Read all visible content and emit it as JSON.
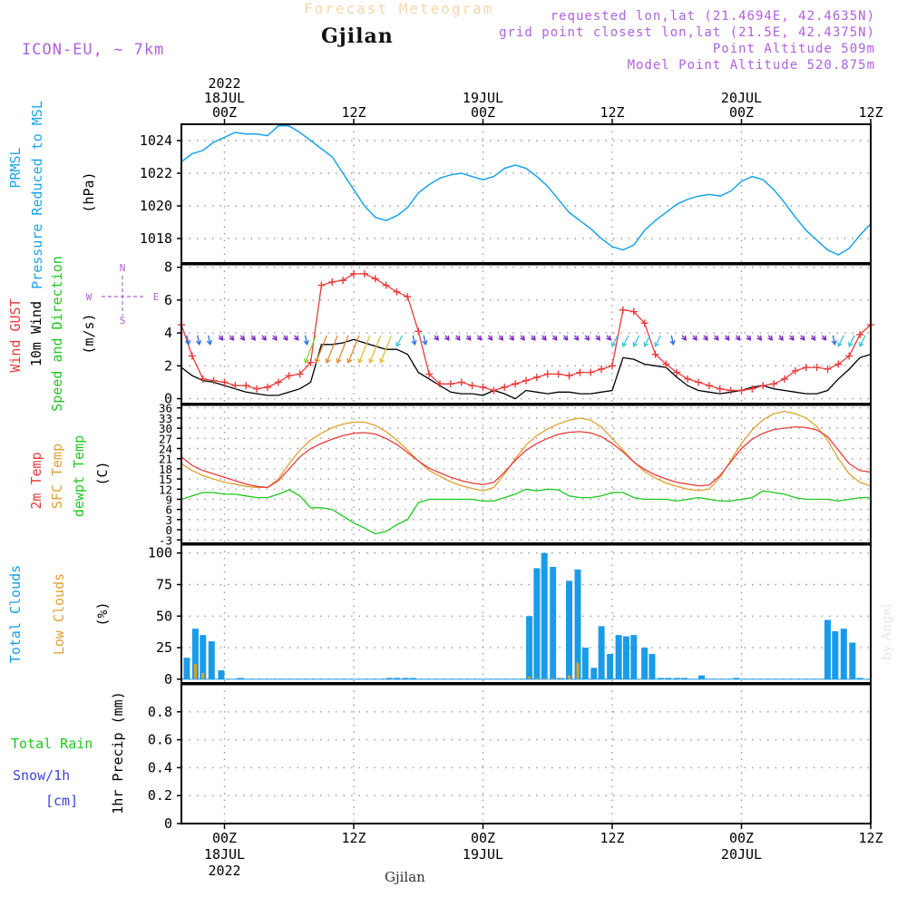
{
  "header": {
    "super_title": "Forecast Meteogram",
    "location": "Gjilan",
    "model": "ICON-EU, ~ 7km",
    "requested": "requested lon,lat (21.4694E, 42.4635N)",
    "grid_point": "grid point closest lon,lat (21.5E, 42.4375N)",
    "point_altitude": "Point Altitude 509m",
    "model_altitude": "Model Point Altitude 520.875m",
    "credit": "by Angel",
    "footer_location": "Gjilan"
  },
  "time_axis": {
    "top_labels": [
      "2022\n18JUL\n00Z",
      "12Z",
      "19JUL\n00Z",
      "12Z",
      "20JUL\n00Z",
      "12Z"
    ],
    "bottom_labels": [
      "00Z\n18JUL\n2022",
      "12Z",
      "00Z\n19JUL",
      "12Z",
      "00Z\n20JUL",
      "12Z"
    ]
  },
  "colors": {
    "pressure": "#1aa3e8",
    "gust": "#e83c3c",
    "wind": "#000000",
    "direction": "#1ec81e",
    "temp2m": "#e83c3c",
    "sfc": "#e0a030",
    "dewpt": "#1ec81e",
    "total_clouds": "#1a9be8",
    "low_clouds": "#e0a030",
    "rain": "#1ec81e",
    "snow": "#4040e0",
    "arrow_violet": "#7a22c8",
    "label_violet": "#b060e0"
  },
  "chart_data": [
    {
      "type": "line",
      "panel": "pressure",
      "ylabel_lines": [
        "PRMSL",
        "Pressure Reduced to MSL"
      ],
      "unit": "(hPa)",
      "ylim": [
        1016.5,
        1025
      ],
      "yticks": [
        1018,
        1020,
        1022,
        1024
      ],
      "x_unit": "hours from 18JUL 00Z",
      "xlim": [
        -4,
        60
      ],
      "series": [
        {
          "x": [
            -4,
            -3,
            -2,
            -1,
            0,
            1,
            2,
            3,
            4,
            5,
            6,
            7,
            8,
            9,
            10,
            11,
            12,
            13,
            14,
            15,
            16,
            17,
            18,
            19,
            20,
            21,
            22,
            23,
            24,
            25,
            26,
            27,
            28,
            29,
            30,
            31,
            32,
            33,
            34,
            35,
            36,
            37,
            38,
            39,
            40,
            41,
            42,
            43,
            44,
            45,
            46,
            47,
            48,
            49,
            50,
            51,
            52,
            53,
            54,
            55,
            56,
            57,
            58,
            59,
            60
          ],
          "y": [
            1022.7,
            1023.2,
            1023.4,
            1023.9,
            1024.2,
            1024.5,
            1024.4,
            1024.4,
            1024.3,
            1024.9,
            1024.9,
            1024.5,
            1024.0,
            1023.5,
            1023.0,
            1022.0,
            1021.0,
            1020.0,
            1019.3,
            1019.1,
            1019.4,
            1019.9,
            1020.8,
            1021.3,
            1021.7,
            1021.9,
            1022.0,
            1021.8,
            1021.6,
            1021.8,
            1022.3,
            1022.5,
            1022.3,
            1021.8,
            1021.2,
            1020.4,
            1019.6,
            1019.1,
            1018.6,
            1018.0,
            1017.5,
            1017.3,
            1017.6,
            1018.5,
            1019.1,
            1019.6,
            1020.1,
            1020.4,
            1020.6,
            1020.7,
            1020.6,
            1020.9,
            1021.5,
            1021.8,
            1021.6,
            1021.0,
            1020.2,
            1019.3,
            1018.5,
            1017.9,
            1017.3,
            1017.0,
            1017.4,
            1018.2,
            1018.9
          ]
        }
      ]
    },
    {
      "type": "line",
      "panel": "wind",
      "ylabel_lines": [
        "Wind GUST",
        "10m Wind",
        "Speed and Direction"
      ],
      "unit": "(m/s)",
      "compass": {
        "n": "N",
        "s": "S",
        "w": "W",
        "e": "E"
      },
      "ylim": [
        -0.3,
        8.2
      ],
      "yticks": [
        0,
        2,
        4,
        6,
        8
      ],
      "x_unit": "hours from 18JUL 00Z",
      "xlim": [
        -4,
        60
      ],
      "series": [
        {
          "name": "Wind GUST",
          "x": [
            -4,
            -3,
            -2,
            -1,
            0,
            1,
            2,
            3,
            4,
            5,
            6,
            7,
            8,
            9,
            10,
            11,
            12,
            13,
            14,
            15,
            16,
            17,
            18,
            19,
            20,
            21,
            22,
            23,
            24,
            25,
            26,
            27,
            28,
            29,
            30,
            31,
            32,
            33,
            34,
            35,
            36,
            37,
            38,
            39,
            40,
            41,
            42,
            43,
            44,
            45,
            46,
            47,
            48,
            49,
            50,
            51,
            52,
            53,
            54,
            55,
            56,
            57,
            58,
            59,
            60
          ],
          "y": [
            4.5,
            2.6,
            1.2,
            1.1,
            1.0,
            0.8,
            0.8,
            0.6,
            0.7,
            1.0,
            1.4,
            1.5,
            2.2,
            6.9,
            7.1,
            7.2,
            7.6,
            7.6,
            7.3,
            6.9,
            6.5,
            6.2,
            4.1,
            1.5,
            0.9,
            0.9,
            1.0,
            0.8,
            0.7,
            0.5,
            0.7,
            0.9,
            1.1,
            1.3,
            1.5,
            1.5,
            1.4,
            1.6,
            1.6,
            1.8,
            2.0,
            5.4,
            5.3,
            4.6,
            2.7,
            2.1,
            1.6,
            1.2,
            1.0,
            0.8,
            0.6,
            0.5,
            0.5,
            0.6,
            0.8,
            0.9,
            1.2,
            1.7,
            1.9,
            1.9,
            1.8,
            2.1,
            2.6,
            3.9,
            4.5
          ]
        },
        {
          "name": "10m Wind",
          "x": [
            -4,
            -3,
            -2,
            -1,
            0,
            1,
            2,
            3,
            4,
            5,
            6,
            7,
            8,
            9,
            10,
            11,
            12,
            13,
            14,
            15,
            16,
            17,
            18,
            19,
            20,
            21,
            22,
            23,
            24,
            25,
            26,
            27,
            28,
            29,
            30,
            31,
            32,
            33,
            34,
            35,
            36,
            37,
            38,
            39,
            40,
            41,
            42,
            43,
            44,
            45,
            46,
            47,
            48,
            49,
            50,
            51,
            52,
            53,
            54,
            55,
            56,
            57,
            58,
            59,
            60
          ],
          "y": [
            1.9,
            1.4,
            1.1,
            1.0,
            0.8,
            0.6,
            0.4,
            0.3,
            0.2,
            0.2,
            0.4,
            0.6,
            1.0,
            3.3,
            3.3,
            3.4,
            3.6,
            3.4,
            3.2,
            3.0,
            3.0,
            2.7,
            1.6,
            1.2,
            0.8,
            0.4,
            0.3,
            0.3,
            0.2,
            0.5,
            0.3,
            0.0,
            0.5,
            0.4,
            0.3,
            0.4,
            0.4,
            0.3,
            0.3,
            0.4,
            0.5,
            2.5,
            2.4,
            2.1,
            2.0,
            1.9,
            1.3,
            0.8,
            0.5,
            0.4,
            0.3,
            0.4,
            0.5,
            0.7,
            0.8,
            0.6,
            0.5,
            0.4,
            0.3,
            0.3,
            0.5,
            1.2,
            1.8,
            2.5,
            2.7
          ]
        }
      ]
    },
    {
      "type": "line",
      "panel": "temperature",
      "ylabel_lines": [
        "2m Temp",
        "SFC Temp",
        "dewpt Temp"
      ],
      "unit": "(C)",
      "ylim": [
        -4,
        37
      ],
      "yticks": [
        -3,
        0,
        3,
        6,
        9,
        12,
        15,
        18,
        21,
        24,
        27,
        30,
        33,
        36
      ],
      "x_unit": "hours from 18JUL 00Z",
      "xlim": [
        -4,
        60
      ],
      "series": [
        {
          "name": "2m Temp",
          "x": [
            -4,
            -3,
            -2,
            -1,
            0,
            1,
            2,
            3,
            4,
            5,
            6,
            7,
            8,
            9,
            10,
            11,
            12,
            13,
            14,
            15,
            16,
            17,
            18,
            19,
            20,
            21,
            22,
            23,
            24,
            25,
            26,
            27,
            28,
            29,
            30,
            31,
            32,
            33,
            34,
            35,
            36,
            37,
            38,
            39,
            40,
            41,
            42,
            43,
            44,
            45,
            46,
            47,
            48,
            49,
            50,
            51,
            52,
            53,
            54,
            55,
            56,
            57,
            58,
            59,
            60
          ],
          "y": [
            21.5,
            19.0,
            17.5,
            16.5,
            15.5,
            14.5,
            13.5,
            12.8,
            12.5,
            14.5,
            18.0,
            21.5,
            24.0,
            25.5,
            26.8,
            27.8,
            28.5,
            28.7,
            28.3,
            27.0,
            25.2,
            22.8,
            20.3,
            18.2,
            16.8,
            15.5,
            14.5,
            13.8,
            13.3,
            14.0,
            17.0,
            20.5,
            23.5,
            25.5,
            27.0,
            28.2,
            28.8,
            29.0,
            28.6,
            27.5,
            25.5,
            23.0,
            20.0,
            17.8,
            16.2,
            15.0,
            14.0,
            13.5,
            13.0,
            13.2,
            16.0,
            20.0,
            24.0,
            26.8,
            28.5,
            29.6,
            30.0,
            30.4,
            30.2,
            29.5,
            27.5,
            23.5,
            19.5,
            17.5,
            17.0
          ]
        },
        {
          "name": "SFC Temp",
          "x": [
            -4,
            -3,
            -2,
            -1,
            0,
            1,
            2,
            3,
            4,
            5,
            6,
            7,
            8,
            9,
            10,
            11,
            12,
            13,
            14,
            15,
            16,
            17,
            18,
            19,
            20,
            21,
            22,
            23,
            24,
            25,
            26,
            27,
            28,
            29,
            30,
            31,
            32,
            33,
            34,
            35,
            36,
            37,
            38,
            39,
            40,
            41,
            42,
            43,
            44,
            45,
            46,
            47,
            48,
            49,
            50,
            51,
            52,
            53,
            54,
            55,
            56,
            57,
            58,
            59,
            60
          ],
          "y": [
            19.5,
            17.5,
            16.0,
            15.0,
            14.0,
            13.5,
            12.8,
            12.5,
            12.5,
            15.0,
            19.5,
            23.5,
            26.5,
            28.5,
            30.2,
            31.2,
            31.8,
            31.8,
            30.8,
            29.0,
            26.5,
            23.5,
            20.3,
            17.5,
            15.8,
            14.2,
            13.0,
            12.2,
            11.5,
            12.5,
            16.5,
            21.0,
            25.0,
            27.8,
            29.8,
            31.3,
            32.4,
            33.0,
            32.4,
            30.3,
            27.0,
            23.5,
            20.0,
            17.2,
            15.3,
            13.8,
            12.8,
            12.0,
            11.6,
            12.0,
            15.5,
            20.5,
            25.5,
            29.5,
            32.5,
            34.3,
            35.0,
            34.3,
            33.0,
            30.5,
            26.5,
            21.0,
            16.5,
            14.0,
            13.0
          ]
        },
        {
          "name": "dewpt Temp",
          "x": [
            -4,
            -3,
            -2,
            -1,
            0,
            1,
            2,
            3,
            4,
            5,
            6,
            7,
            8,
            9,
            10,
            11,
            12,
            13,
            14,
            15,
            16,
            17,
            18,
            19,
            20,
            21,
            22,
            23,
            24,
            25,
            26,
            27,
            28,
            29,
            30,
            31,
            32,
            33,
            34,
            35,
            36,
            37,
            38,
            39,
            40,
            41,
            42,
            43,
            44,
            45,
            46,
            47,
            48,
            49,
            50,
            51,
            52,
            53,
            54,
            55,
            56,
            57,
            58,
            59,
            60
          ],
          "y": [
            9.0,
            10.0,
            11.0,
            11.0,
            10.5,
            10.5,
            10.0,
            9.5,
            9.5,
            10.5,
            11.8,
            10.0,
            6.5,
            6.5,
            6.0,
            4.0,
            2.0,
            0.5,
            -1.2,
            -0.5,
            1.5,
            3.0,
            8.0,
            9.0,
            9.0,
            9.0,
            9.0,
            9.0,
            8.5,
            8.5,
            9.5,
            10.5,
            12.0,
            11.5,
            12.0,
            11.8,
            10.0,
            9.5,
            9.5,
            10.0,
            11.0,
            11.0,
            9.5,
            9.0,
            9.0,
            9.0,
            8.5,
            9.0,
            9.5,
            9.0,
            8.5,
            8.5,
            9.0,
            9.5,
            11.5,
            11.0,
            10.5,
            9.5,
            9.0,
            9.0,
            9.0,
            8.5,
            9.0,
            9.5,
            9.5
          ]
        }
      ]
    },
    {
      "type": "bar",
      "panel": "clouds",
      "ylabel_lines": [
        "Total Clouds",
        "Low Clouds"
      ],
      "unit": "(%)",
      "ylim": [
        -3,
        107
      ],
      "yticks": [
        0,
        25,
        50,
        75,
        100
      ],
      "x_unit": "hours from 18JUL 00Z",
      "xlim": [
        -4,
        60
      ],
      "series": [
        {
          "name": "Total Clouds",
          "x": [
            -3.5,
            -2.7,
            -2.0,
            -1.2,
            -0.3,
            1.5,
            15.3,
            16.0,
            16.8,
            17.5,
            28.3,
            29.0,
            29.7,
            30.5,
            31.2,
            32.0,
            32.8,
            33.5,
            34.3,
            35.0,
            35.8,
            36.6,
            37.3,
            38.0,
            39.0,
            39.7,
            40.5,
            41.2,
            42.0,
            42.7,
            44.3,
            47.5,
            56.0,
            56.7,
            57.5,
            58.3,
            59.0
          ],
          "y": [
            17,
            40,
            35,
            30,
            7,
            1,
            1,
            1,
            1,
            1,
            50,
            88,
            100,
            89,
            1,
            78,
            87,
            25,
            9,
            42,
            20,
            35,
            34,
            35,
            25,
            20,
            1,
            1,
            1,
            1,
            3,
            1,
            47,
            38,
            40,
            29,
            1
          ]
        },
        {
          "name": "Low Clouds",
          "x": [
            -2.7,
            -2.0,
            28.3,
            29.0,
            29.7,
            30.5,
            31.2,
            32.0,
            32.8
          ],
          "y": [
            12,
            5,
            2,
            1,
            1,
            1,
            1,
            3,
            13
          ]
        }
      ]
    },
    {
      "type": "bar",
      "panel": "precipitation",
      "ylabel_lines": [
        "Total  Rain",
        "Snow/1h",
        "[cm]"
      ],
      "unit": "1hr Precip (mm)",
      "ylim": [
        0,
        1.0
      ],
      "yticks": [
        0,
        0.2,
        0.4,
        0.6,
        0.8
      ],
      "x_unit": "hours from 18JUL 00Z",
      "xlim": [
        -4,
        60
      ],
      "series": []
    }
  ]
}
